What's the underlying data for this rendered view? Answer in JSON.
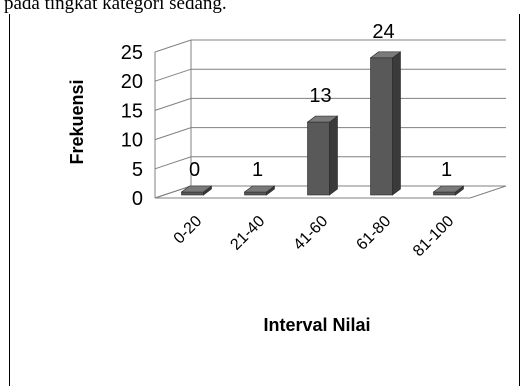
{
  "top_text": "pada tingkat kategori sedang.",
  "chart_data": {
    "type": "bar",
    "style": "3d-column",
    "categories": [
      "0-20",
      "21-40",
      "41-60",
      "61-80",
      "81-100"
    ],
    "values": [
      0,
      1,
      13,
      24,
      1
    ],
    "data_labels": [
      "0",
      "1",
      "13",
      "24",
      "1"
    ],
    "xlabel": "Interval Nilai",
    "ylabel": "Frekuensi",
    "ylim": [
      0,
      25
    ],
    "yticks": [
      "0",
      "5",
      "10",
      "15",
      "20",
      "25"
    ],
    "grid": true,
    "legend": "none",
    "colors": {
      "bar_front": "#595959",
      "bar_side": "#3a3a3a",
      "bar_top": "#7a7a7a",
      "grid": "#808080"
    }
  }
}
